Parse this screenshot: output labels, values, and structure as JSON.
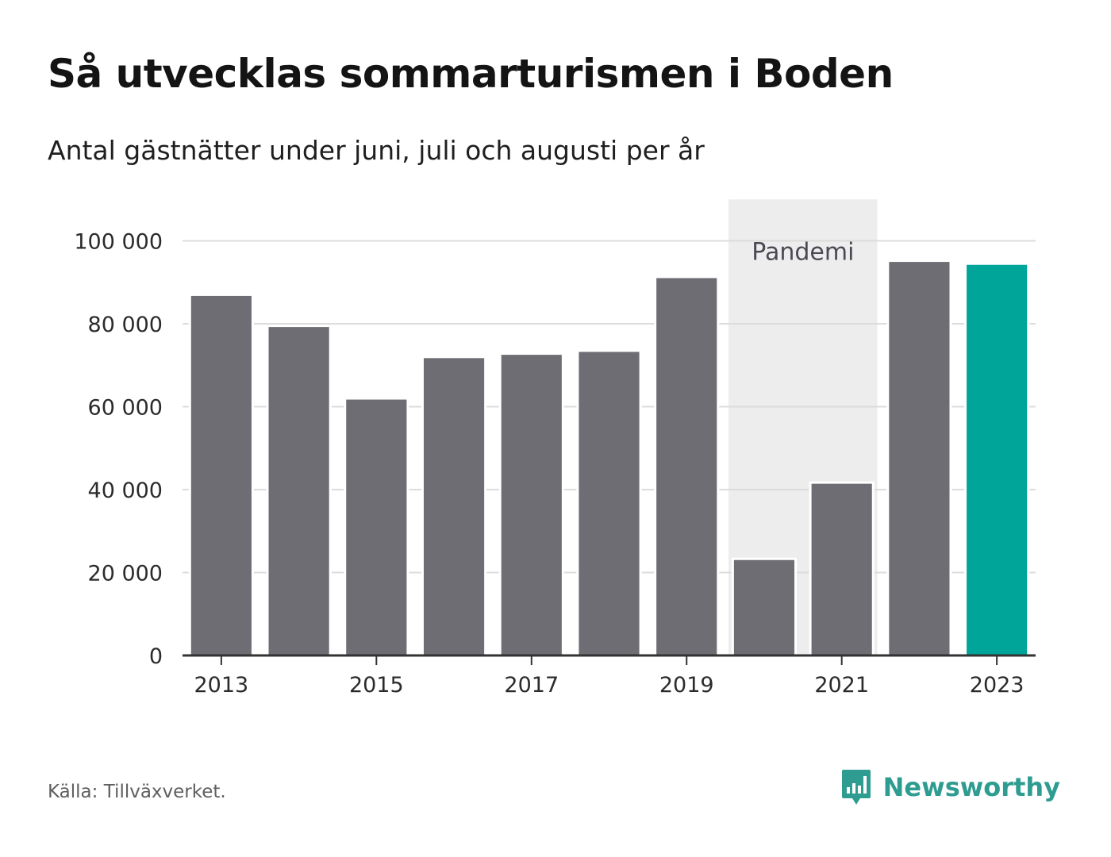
{
  "header": {
    "title": "Så utvecklas sommarturismen i Boden",
    "subtitle": "Antal gästnätter under juni, juli och augusti per år"
  },
  "footer": {
    "source": "Källa: Tillväxverket.",
    "brand": "Newsworthy",
    "brand_icon": "bar-chart-speech-bubble-icon",
    "brand_color": "#2e9c90"
  },
  "chart_data": {
    "type": "bar",
    "categories": [
      "2013",
      "2014",
      "2015",
      "2016",
      "2017",
      "2018",
      "2019",
      "2020",
      "2021",
      "2022",
      "2023"
    ],
    "values": [
      87000,
      79500,
      62000,
      72000,
      72800,
      73500,
      91300,
      23300,
      41700,
      95200,
      94500
    ],
    "highlight_index": 10,
    "bar_color": "#6e6d73",
    "highlight_color": "#00a59a",
    "ylim": [
      0,
      110000
    ],
    "yticks": [
      0,
      20000,
      40000,
      60000,
      80000,
      100000
    ],
    "ytick_labels": [
      "0",
      "20 000",
      "40 000",
      "60 000",
      "80 000",
      "100 000"
    ],
    "xtick_labels": [
      "2013",
      "2015",
      "2017",
      "2019",
      "2021",
      "2023"
    ],
    "grid": true,
    "annotation": {
      "label": "Pandemi",
      "from": "2020",
      "to": "2021",
      "color": "#ededed"
    }
  }
}
